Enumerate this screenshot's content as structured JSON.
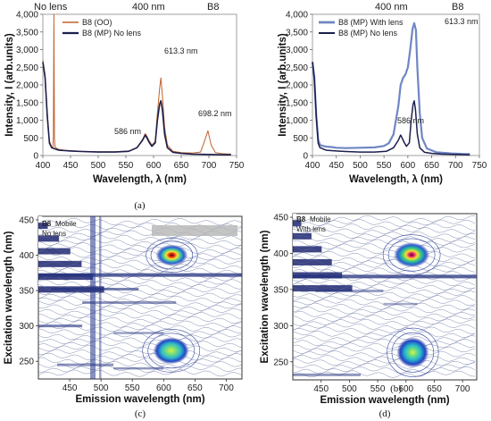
{
  "chart_data": [
    {
      "type": "line",
      "panel_label": "(a)",
      "header_labels": [
        "No lens",
        "400 nm",
        "B8"
      ],
      "xlabel": "Wavelength, λ (nm)",
      "ylabel": "Intensity, I (arb.units)",
      "xlim": [
        400,
        750
      ],
      "ylim": [
        0,
        4000
      ],
      "xticks": [
        400,
        450,
        500,
        550,
        600,
        650,
        700,
        750
      ],
      "yticks": [
        0,
        500,
        1000,
        1500,
        2000,
        2500,
        3000,
        3500,
        4000
      ],
      "ytick_labels": [
        "0",
        "500",
        "1,000",
        "1,500",
        "2,000",
        "2,500",
        "3,000",
        "3,500",
        "4,000"
      ],
      "legend_position": "top-left",
      "series": [
        {
          "name": "B8 (OO)",
          "color": "#c0612c",
          "x": [
            400,
            404,
            408,
            412,
            416,
            418,
            419,
            420,
            421,
            422,
            425,
            430,
            440,
            450,
            470,
            500,
            530,
            555,
            570,
            580,
            585,
            588,
            592,
            597,
            603,
            607,
            611,
            613.3,
            616,
            620,
            625,
            635,
            650,
            670,
            685,
            692,
            698.2,
            704,
            712,
            725,
            740
          ],
          "y": [
            2700,
            2300,
            1200,
            400,
            250,
            200,
            500,
            4000,
            500,
            250,
            200,
            170,
            150,
            140,
            120,
            110,
            110,
            130,
            230,
            450,
            620,
            550,
            420,
            300,
            400,
            1200,
            1900,
            2200,
            1700,
            800,
            300,
            120,
            80,
            70,
            100,
            400,
            700,
            300,
            80,
            50,
            40
          ]
        },
        {
          "name": "B8 (MP) No lens",
          "color": "#1b1f4d",
          "x": [
            400,
            404,
            408,
            412,
            416,
            420,
            425,
            430,
            440,
            450,
            470,
            500,
            530,
            555,
            570,
            580,
            585,
            588,
            592,
            597,
            603,
            607,
            611,
            613.3,
            616,
            620,
            625,
            635,
            650,
            670,
            700,
            730,
            740
          ],
          "y": [
            2650,
            2200,
            1100,
            350,
            220,
            200,
            170,
            150,
            140,
            130,
            115,
            100,
            100,
            120,
            220,
            430,
            580,
            500,
            380,
            260,
            360,
            1000,
            1450,
            1550,
            1300,
            600,
            220,
            90,
            60,
            40,
            30,
            20,
            20
          ]
        }
      ],
      "annotations": [
        "613.3 nm",
        "586 nm",
        "698.2 nm"
      ]
    },
    {
      "type": "line",
      "panel_label": "(b)",
      "header_labels": [
        "400 nm",
        "B8"
      ],
      "xlabel": "Wavelength, λ (nm)",
      "ylabel": "Intensity, I (arb.units)",
      "xlim": [
        400,
        750
      ],
      "ylim": [
        0,
        4000
      ],
      "xticks": [
        400,
        450,
        500,
        550,
        600,
        650,
        700,
        750
      ],
      "yticks": [
        0,
        500,
        1000,
        1500,
        2000,
        2500,
        3000,
        3500,
        4000
      ],
      "ytick_labels": [
        "0",
        "500",
        "1,000",
        "1,500",
        "2,000",
        "2,500",
        "3,000",
        "3,500",
        "4,000"
      ],
      "legend_position": "top-left",
      "series": [
        {
          "name": "B8 (MP) With lens",
          "color": "#6f86c4",
          "x": [
            400,
            404,
            408,
            412,
            416,
            420,
            425,
            430,
            440,
            450,
            470,
            500,
            530,
            550,
            560,
            570,
            580,
            585,
            590,
            595,
            600,
            605,
            610,
            613.3,
            617,
            620,
            625,
            630,
            640,
            660,
            690,
            720,
            730
          ],
          "y": [
            2650,
            2200,
            1100,
            450,
            300,
            280,
            260,
            250,
            240,
            220,
            210,
            220,
            230,
            270,
            350,
            600,
            1400,
            2000,
            2200,
            2300,
            2500,
            3000,
            3600,
            3750,
            3550,
            2500,
            1200,
            500,
            200,
            90,
            60,
            40,
            40
          ]
        },
        {
          "name": "B8 (MP) No lens",
          "color": "#1b1f4d",
          "x": [
            400,
            404,
            408,
            412,
            416,
            420,
            425,
            430,
            440,
            450,
            470,
            500,
            530,
            555,
            570,
            580,
            585,
            588,
            592,
            597,
            603,
            607,
            611,
            613.3,
            616,
            620,
            625,
            635,
            650,
            670,
            700,
            730
          ],
          "y": [
            2650,
            2200,
            1100,
            350,
            220,
            200,
            170,
            150,
            140,
            130,
            115,
            100,
            100,
            120,
            220,
            430,
            580,
            500,
            380,
            260,
            360,
            1000,
            1450,
            1550,
            1300,
            600,
            220,
            90,
            60,
            40,
            30,
            20
          ]
        }
      ],
      "annotations": [
        "613.3 nm",
        "586 nm"
      ]
    },
    {
      "type": "heatmap",
      "panel_label": "(c)",
      "inset_title": "B8",
      "inset_subtitle": "Mobile",
      "inset_note": "No lens",
      "xlabel": "Emission wavelength (nm)",
      "ylabel": "Excitation wavelength (nm)",
      "xlim": [
        400,
        725
      ],
      "ylim": [
        225,
        455
      ],
      "xticks": [
        450,
        500,
        550,
        600,
        650,
        700
      ],
      "yticks": [
        250,
        300,
        350,
        400,
        450
      ],
      "peaks": [
        {
          "x": 613,
          "y": 400,
          "strength": 1.0
        },
        {
          "x": 612,
          "y": 265,
          "strength": 0.85
        }
      ]
    },
    {
      "type": "heatmap",
      "panel_label": "(d)",
      "inset_title": "B8",
      "inset_subtitle": "Mobile",
      "inset_note": "With lens",
      "xlabel": "Emission wavelength (nm)",
      "ylabel": "Excitation wavelength (nm)",
      "xlim": [
        400,
        725
      ],
      "ylim": [
        225,
        455
      ],
      "xticks": [
        450,
        500,
        550,
        600,
        650,
        700
      ],
      "yticks": [
        250,
        300,
        350,
        400,
        450
      ],
      "peaks": [
        {
          "x": 610,
          "y": 398,
          "strength": 1.0
        },
        {
          "x": 612,
          "y": 263,
          "strength": 0.9
        }
      ]
    }
  ]
}
